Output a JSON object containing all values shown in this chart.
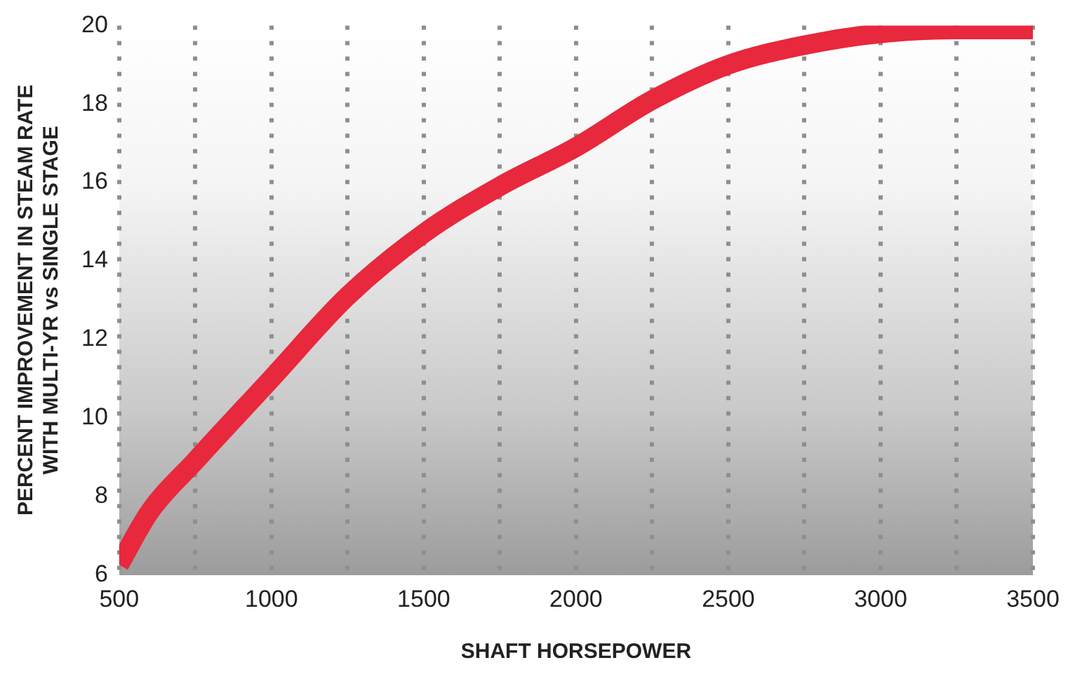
{
  "chart_data": {
    "type": "line",
    "xlabel": "SHAFT HORSEPOWER",
    "ylabel": "PERCENT IMPROVEMENT IN STEAM RATE WITH MULTI-YR vs SINGLE STAGE",
    "x": [
      500,
      600,
      750,
      1000,
      1250,
      1500,
      1750,
      2000,
      2250,
      2500,
      2750,
      3000,
      3250,
      3500
    ],
    "series": [
      {
        "color": "#e8283c",
        "values": [
          6.25,
          7.6,
          8.9,
          11.0,
          13.1,
          14.7,
          15.9,
          16.9,
          18.1,
          19.0,
          19.5,
          19.8,
          19.9,
          19.9
        ]
      }
    ],
    "xlim": [
      500,
      3500
    ],
    "xticks": [
      500,
      {
        "value": 750,
        "label": null
      },
      1000,
      {
        "value": 1250,
        "label": null
      },
      1500,
      {
        "value": 1750,
        "label": null
      },
      2000,
      {
        "value": 2250,
        "label": null
      },
      2500,
      {
        "value": 2750,
        "label": null
      },
      3000,
      {
        "value": 3250,
        "label": null
      },
      3500
    ],
    "ylim": [
      6,
      20
    ],
    "yticks": [
      6,
      8,
      10,
      12,
      14,
      16,
      18,
      20
    ],
    "grid": "x",
    "legend": false,
    "marker": "none",
    "line_style": "solid"
  }
}
